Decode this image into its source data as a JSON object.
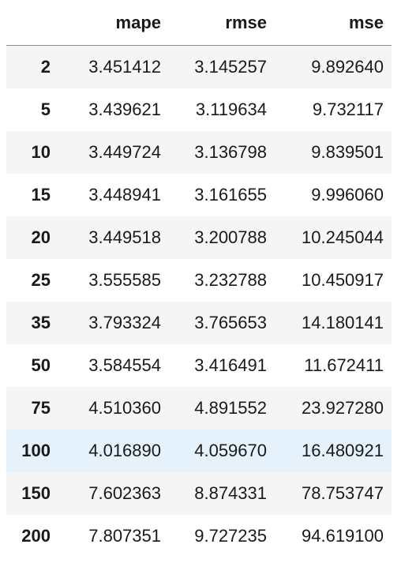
{
  "table": {
    "columns": [
      "",
      "mape",
      "rmse",
      "mse"
    ],
    "rows": [
      {
        "index": "2",
        "mape": "3.451412",
        "rmse": "3.145257",
        "mse": "9.892640"
      },
      {
        "index": "5",
        "mape": "3.439621",
        "rmse": "3.119634",
        "mse": "9.732117"
      },
      {
        "index": "10",
        "mape": "3.449724",
        "rmse": "3.136798",
        "mse": "9.839501"
      },
      {
        "index": "15",
        "mape": "3.448941",
        "rmse": "3.161655",
        "mse": "9.996060"
      },
      {
        "index": "20",
        "mape": "3.449518",
        "rmse": "3.200788",
        "mse": "10.245044"
      },
      {
        "index": "25",
        "mape": "3.555585",
        "rmse": "3.232788",
        "mse": "10.450917"
      },
      {
        "index": "35",
        "mape": "3.793324",
        "rmse": "3.765653",
        "mse": "14.180141"
      },
      {
        "index": "50",
        "mape": "3.584554",
        "rmse": "3.416491",
        "mse": "11.672411"
      },
      {
        "index": "75",
        "mape": "4.510360",
        "rmse": "4.891552",
        "mse": "23.927280"
      },
      {
        "index": "100",
        "mape": "4.016890",
        "rmse": "4.059670",
        "mse": "16.480921"
      },
      {
        "index": "150",
        "mape": "7.602363",
        "rmse": "8.874331",
        "mse": "78.753747"
      },
      {
        "index": "200",
        "mape": "7.807351",
        "rmse": "9.727235",
        "mse": "94.619100"
      }
    ],
    "hovered_row_index": 9,
    "colors": {
      "stripe": "#f5f5f5",
      "hover": "#e6f2fb",
      "header_border": "#8c8c8c",
      "text": "#1a1a1a"
    }
  }
}
